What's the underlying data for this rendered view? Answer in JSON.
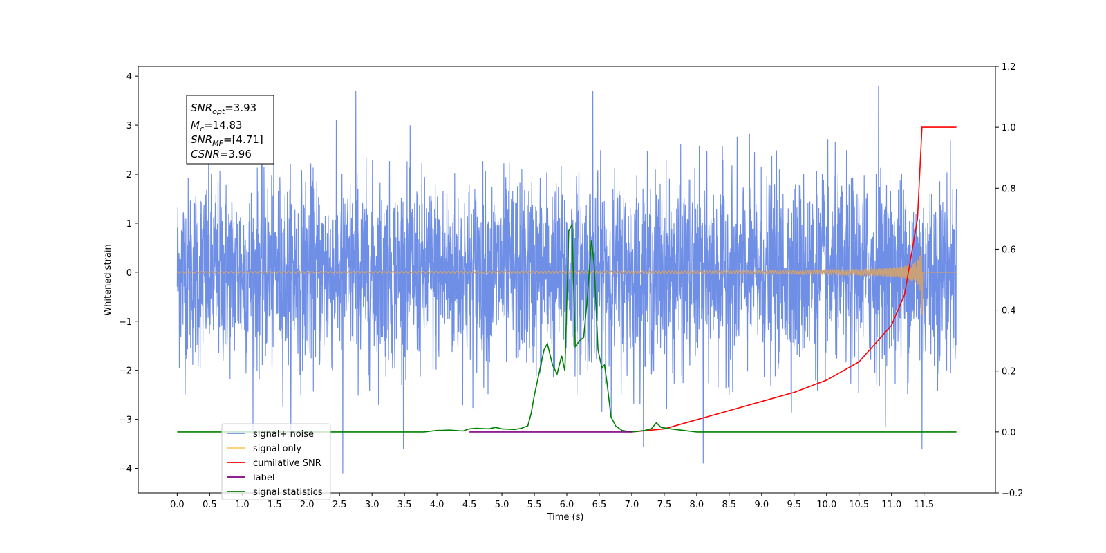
{
  "chart_data": {
    "type": "line",
    "xlabel": "Time (s)",
    "ylabel": "Whitened strain",
    "xlim": [
      -0.6,
      12.6
    ],
    "ylim_left": [
      -4.5,
      4.2
    ],
    "ylim_right": [
      -0.2,
      1.2
    ],
    "x_ticks": [
      "0.0",
      "0.5",
      "1.0",
      "1.5",
      "2.0",
      "2.5",
      "3.0",
      "3.5",
      "4.0",
      "4.5",
      "5.0",
      "5.5",
      "6.0",
      "6.5",
      "7.0",
      "7.5",
      "8.0",
      "8.5",
      "9.0",
      "9.5",
      "10.0",
      "10.5",
      "11.0",
      "11.5"
    ],
    "y_ticks_left": [
      "−4",
      "−3",
      "−2",
      "−1",
      "0",
      "1",
      "2",
      "3",
      "4"
    ],
    "y_ticks_right": [
      "−0.2",
      "0.0",
      "0.2",
      "0.4",
      "0.6",
      "0.8",
      "1.0",
      "1.2"
    ],
    "stats_box": {
      "line1": {
        "base": "SNR",
        "sub": "opt",
        "value": "=3.93"
      },
      "line2": {
        "base": "M",
        "sub": "c",
        "value": "=14.83"
      },
      "line3": {
        "base": "SNR",
        "sub": "MF",
        "value": "=[4.71]"
      },
      "line4": {
        "base": "CSNR",
        "sub": "",
        "value": "=3.96"
      }
    },
    "legend": {
      "placement": "lower-left",
      "entries": [
        {
          "label": "signal+ noise",
          "color": "#6f8ee6"
        },
        {
          "label": "signal only",
          "color": "#ffcc66"
        },
        {
          "label": "cumilative SNR",
          "color": "#ff0000"
        },
        {
          "label": "label",
          "color": "#800080"
        },
        {
          "label": "signal statistics",
          "color": "#008000"
        }
      ]
    },
    "series": [
      {
        "name": "signal+ noise",
        "color": "#6f8ee6",
        "noise_std": 0.95,
        "x_range": [
          0.0,
          12.0
        ],
        "notable_extremes": [
          [
            2.55,
            -4.1
          ],
          [
            8.1,
            -3.9
          ],
          [
            10.8,
            3.8
          ],
          [
            2.75,
            3.7
          ],
          [
            6.4,
            3.7
          ],
          [
            11.47,
            -3.6
          ]
        ]
      },
      {
        "name": "signal only",
        "color": "#c8a07a",
        "chirp_peak_time": 11.47,
        "peak_amplitude": 0.65,
        "trough_amplitude": -0.85
      },
      {
        "name": "cumilative SNR",
        "color": "#ff0000",
        "x": [
          7.0,
          7.5,
          8.0,
          8.5,
          9.0,
          9.5,
          10.0,
          10.5,
          11.0,
          11.2,
          11.4,
          11.47,
          12.0
        ],
        "y": [
          0.0,
          0.01,
          0.04,
          0.07,
          0.1,
          0.13,
          0.17,
          0.23,
          0.35,
          0.45,
          0.7,
          1.0,
          1.0
        ]
      },
      {
        "name": "label",
        "color": "#800080",
        "x": [
          4.5,
          7.0
        ],
        "y": [
          0.0,
          0.0
        ]
      },
      {
        "name": "signal statistics",
        "color": "#008000",
        "x": [
          0.0,
          3.8,
          4.0,
          4.2,
          4.4,
          4.5,
          4.6,
          4.8,
          4.9,
          5.0,
          5.2,
          5.3,
          5.4,
          5.45,
          5.5,
          5.6,
          5.65,
          5.7,
          5.78,
          5.85,
          5.92,
          5.97,
          6.03,
          6.08,
          6.13,
          6.2,
          6.26,
          6.32,
          6.38,
          6.42,
          6.48,
          6.54,
          6.58,
          6.62,
          6.68,
          6.75,
          6.85,
          7.0,
          7.2,
          7.3,
          7.38,
          7.45,
          7.6,
          7.8,
          8.0,
          8.5,
          9.0,
          12.0
        ],
        "y": [
          0.0,
          0.0,
          0.005,
          0.006,
          0.003,
          0.01,
          0.012,
          0.01,
          0.015,
          0.01,
          0.008,
          0.012,
          0.02,
          0.06,
          0.12,
          0.22,
          0.27,
          0.29,
          0.22,
          0.19,
          0.25,
          0.2,
          0.66,
          0.68,
          0.28,
          0.3,
          0.31,
          0.45,
          0.63,
          0.55,
          0.27,
          0.21,
          0.22,
          0.16,
          0.05,
          0.02,
          0.005,
          0.0,
          0.005,
          0.01,
          0.03,
          0.015,
          0.01,
          0.005,
          0.0,
          0.0,
          0.0,
          0.0
        ]
      }
    ]
  }
}
